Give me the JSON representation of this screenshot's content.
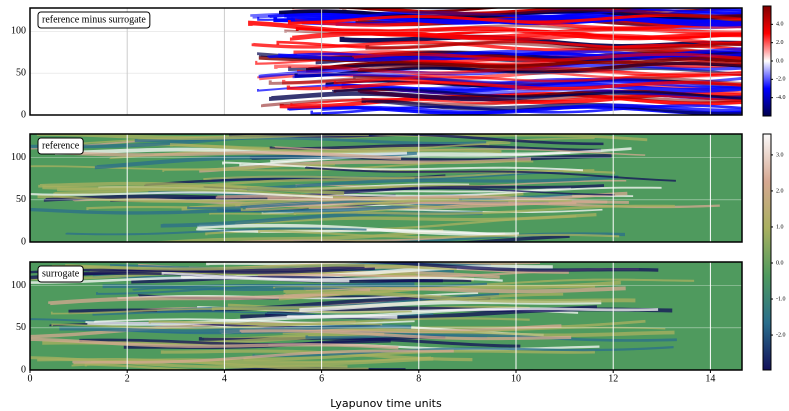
{
  "chart_data": [
    {
      "type": "heatmap",
      "annotation": "reference minus surrogate",
      "xlim": [
        0,
        14.65
      ],
      "ylim": [
        0,
        128
      ],
      "yticks": [
        0,
        50,
        100
      ],
      "grid": true,
      "grid_color": "#cccccc",
      "colors": [
        "#00004c",
        "#0000ff",
        "#ffffff",
        "#ff0000",
        "#7f0000"
      ],
      "clim": [
        -6,
        6
      ],
      "cticks": [
        {
          "value": -4,
          "label": "-4.0"
        },
        {
          "value": -2,
          "label": "-2.0"
        },
        {
          "value": 0,
          "label": "0.0"
        },
        {
          "value": 2,
          "label": "2.0"
        },
        {
          "value": 4,
          "label": "4.0"
        }
      ]
    },
    {
      "type": "heatmap",
      "annotation": "reference",
      "xlim": [
        0,
        14.65
      ],
      "ylim": [
        0,
        128
      ],
      "yticks": [
        0,
        50,
        100
      ],
      "grid": true,
      "grid_color": "#ffffff",
      "colors": [
        "#12105a",
        "#2a6e8c",
        "#4f9a5e",
        "#a9b060",
        "#d6a892",
        "#fbfafa"
      ],
      "clim": [
        -2.97,
        3.58
      ],
      "cticks": [
        {
          "value": -2,
          "label": "-2.0"
        },
        {
          "value": -1,
          "label": "-1.0"
        },
        {
          "value": 0,
          "label": "0.0"
        },
        {
          "value": 1,
          "label": "1.0"
        },
        {
          "value": 2,
          "label": "2.0"
        },
        {
          "value": 3,
          "label": "3.0"
        }
      ]
    },
    {
      "type": "heatmap",
      "annotation": "surrogate",
      "xlim": [
        0,
        14.65
      ],
      "ylim": [
        0,
        128
      ],
      "yticks": [
        0,
        50,
        100
      ],
      "grid": true,
      "grid_color": "#ffffff",
      "xticks": [
        0,
        2,
        4,
        6,
        8,
        10,
        12,
        14
      ],
      "xlabel": "Lyapunov time units"
    }
  ]
}
